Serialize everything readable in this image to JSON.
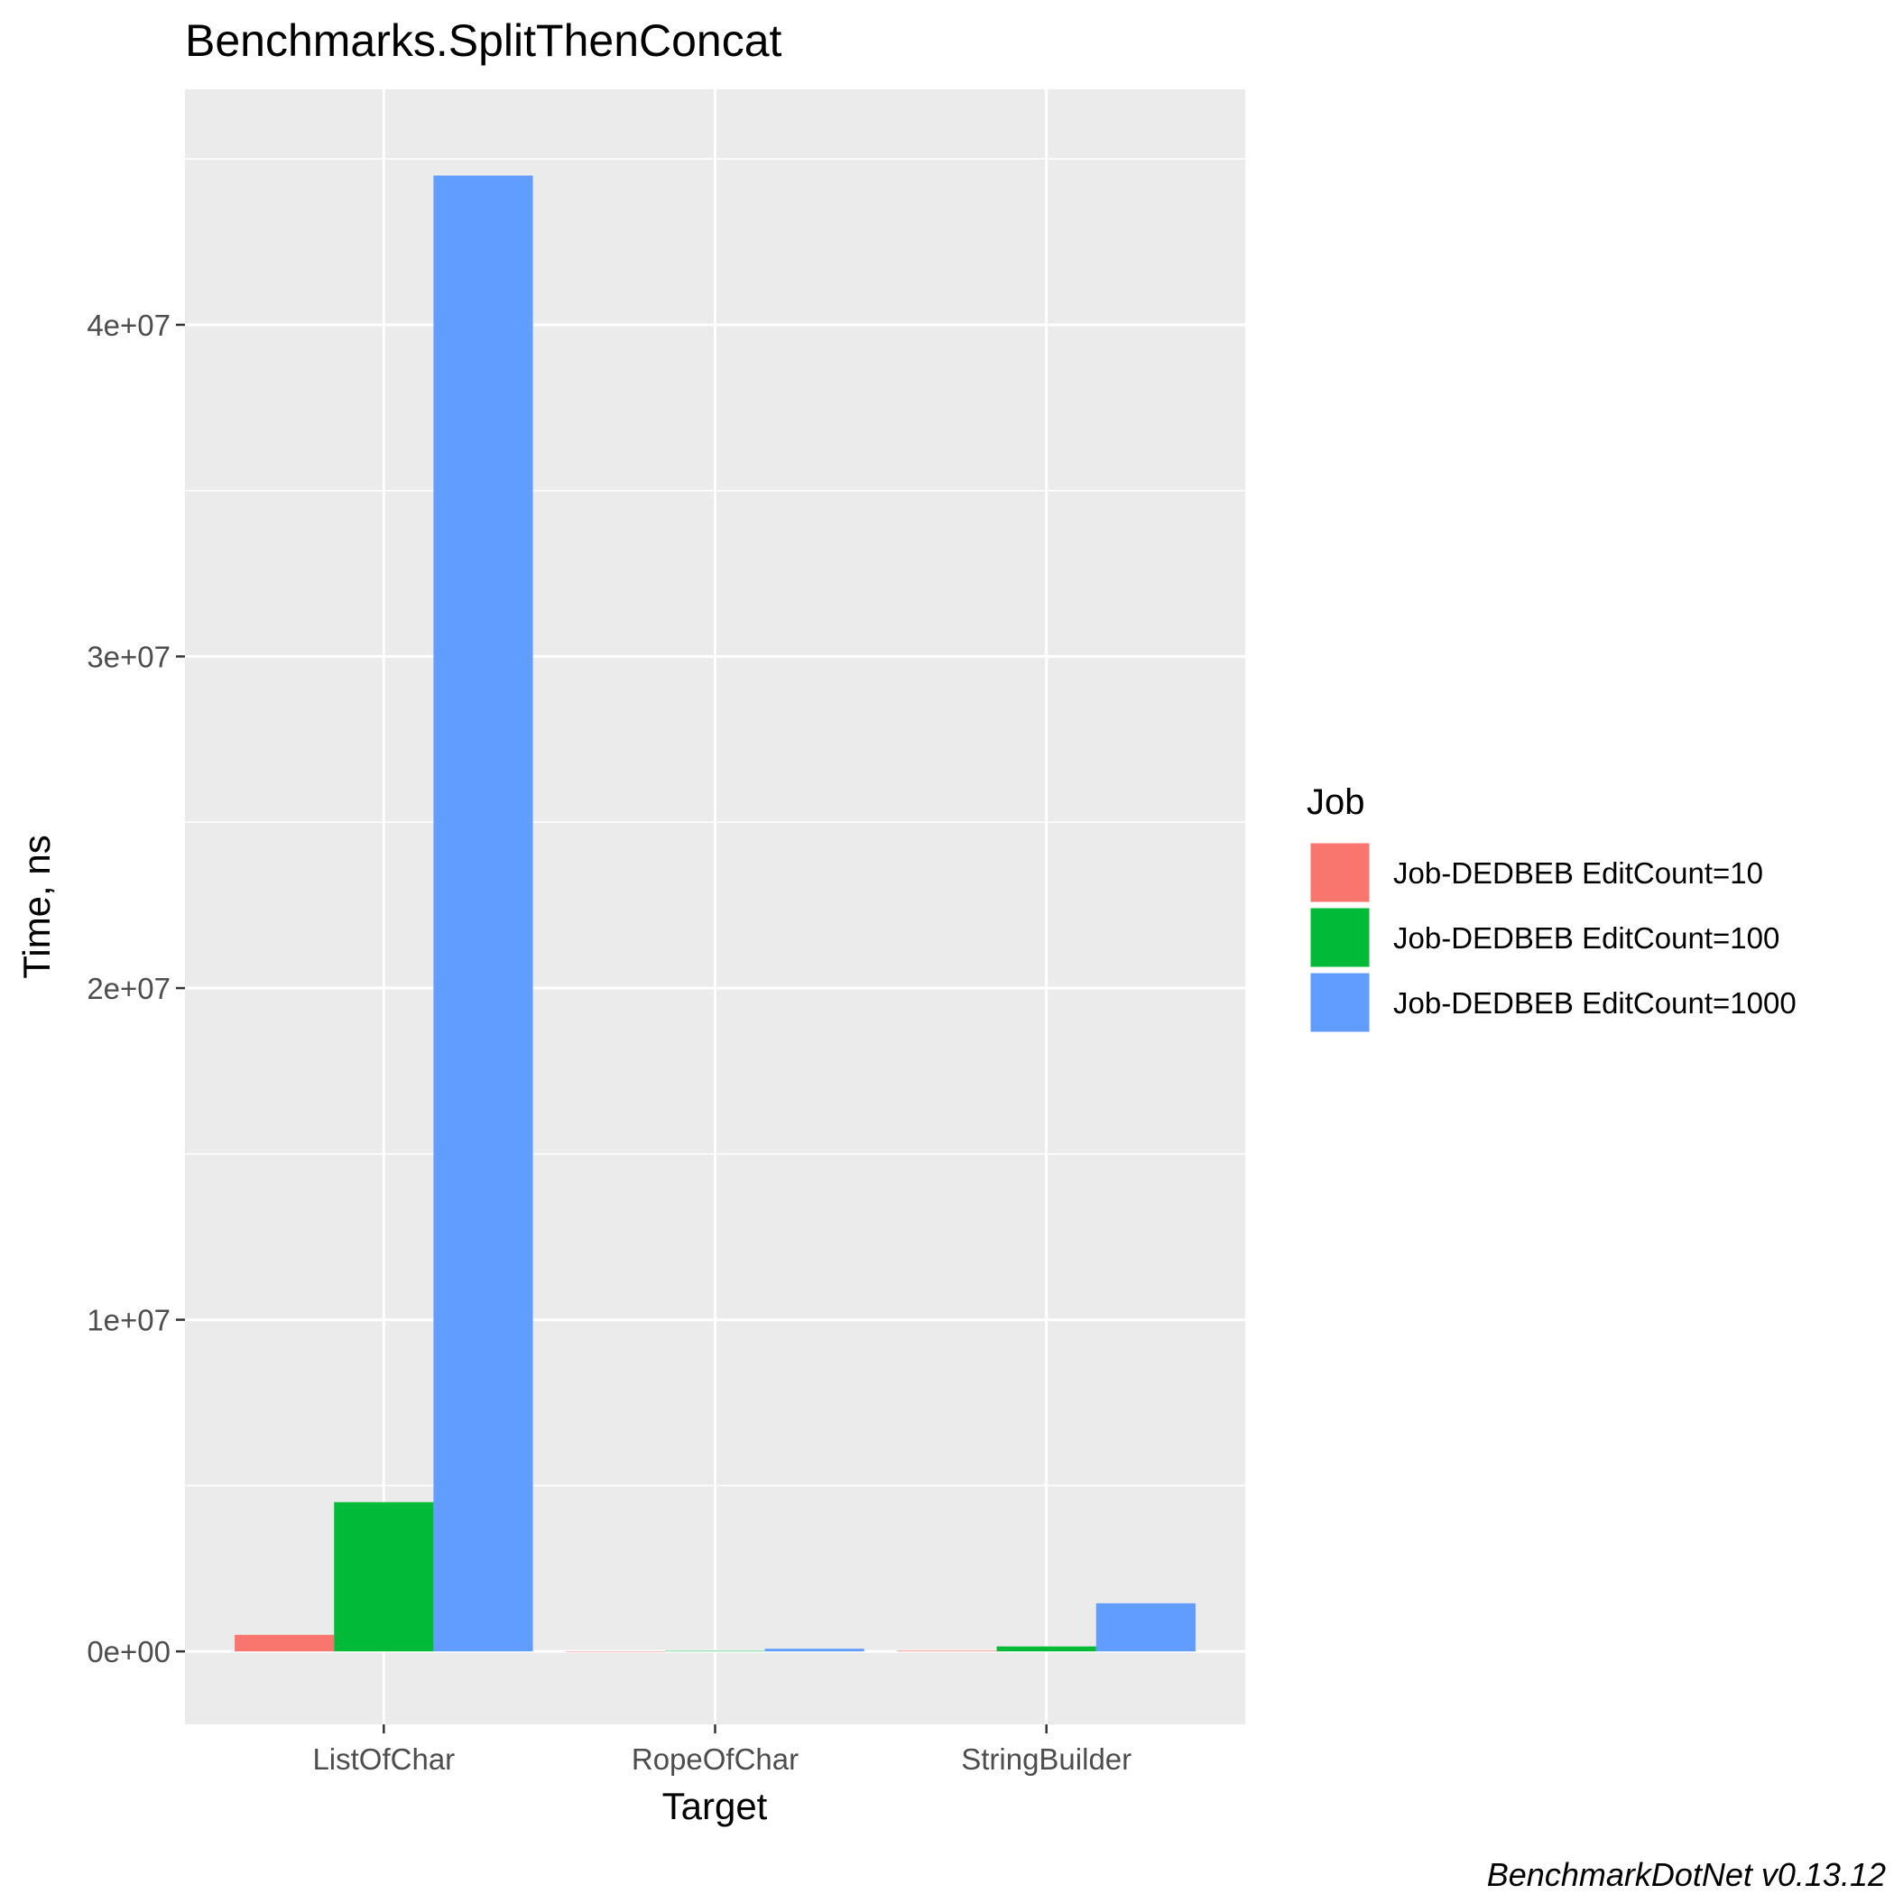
{
  "chart_data": {
    "type": "bar",
    "title": "Benchmarks.SplitThenConcat",
    "xlabel": "Target",
    "ylabel": "Time, ns",
    "categories": [
      "ListOfChar",
      "RopeOfChar",
      "StringBuilder"
    ],
    "series": [
      {
        "name": "Job-DEDBEB EditCount=10",
        "color": "#F8766D",
        "values": [
          500000,
          3000,
          20000
        ]
      },
      {
        "name": "Job-DEDBEB EditCount=100",
        "color": "#00BA38",
        "values": [
          4500000,
          15000,
          150000
        ]
      },
      {
        "name": "Job-DEDBEB EditCount=1000",
        "color": "#619CFF",
        "values": [
          44500000,
          80000,
          1450000
        ]
      }
    ],
    "ylim": [
      -2200000,
      47100000
    ],
    "yticks": [
      0,
      10000000,
      20000000,
      30000000,
      40000000
    ],
    "ytick_labels": [
      "0e+00",
      "1e+07",
      "2e+07",
      "3e+07",
      "4e+07"
    ],
    "grid": true,
    "legend": {
      "title": "Job",
      "position": "right"
    },
    "caption": "BenchmarkDotNet v0.13.12",
    "panel_background": "#EBEBEB",
    "grid_color": "#FFFFFF"
  }
}
